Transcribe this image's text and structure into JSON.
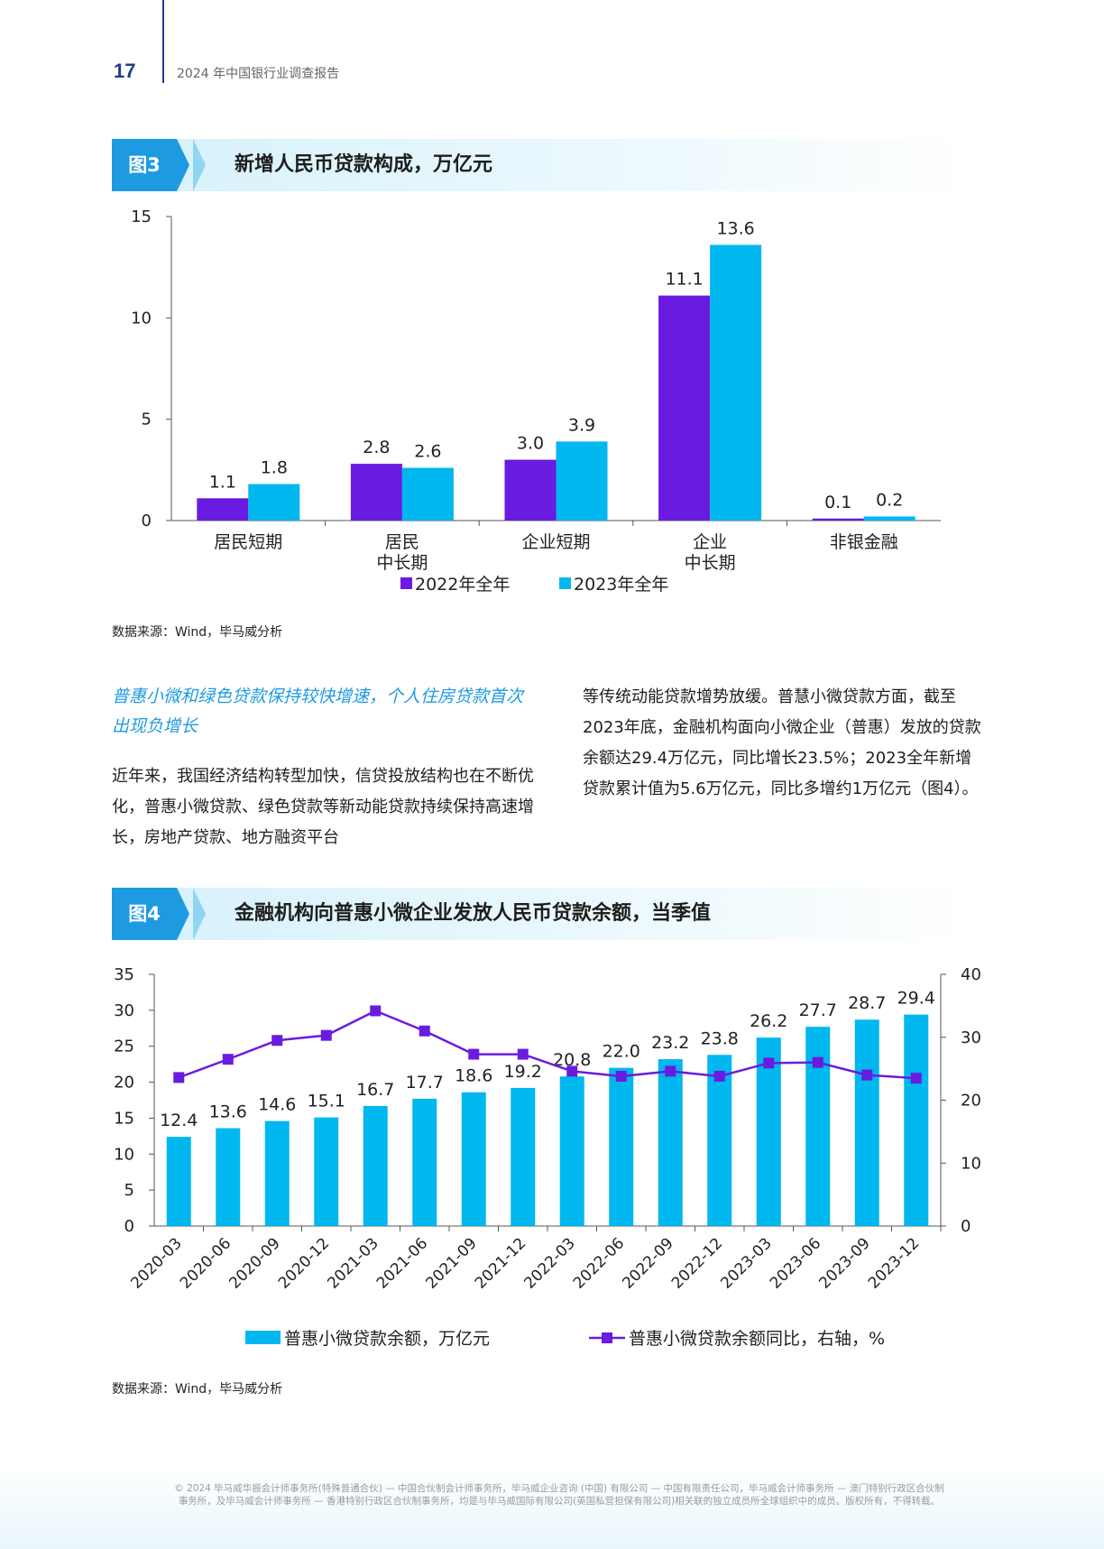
{
  "header": {
    "page_number": "17",
    "report_title": "2024 年中国银行业调查报告"
  },
  "figure3": {
    "badge": "图3",
    "title": "新增人民币贷款构成，万亿元",
    "source": "数据来源：Wind，毕马威分析"
  },
  "figure4": {
    "badge": "图4",
    "title": "金融机构向普惠小微企业发放人民币贷款余额，当季值",
    "source": "数据来源：Wind，毕马威分析"
  },
  "article": {
    "subheading": "普惠小微和绿色贷款保持较快增速，个人住房贷款首次出现负增长",
    "left_paragraph": "近年来，我国经济结构转型加快，信贷投放结构也在不断优化，普惠小微贷款、绿色贷款等新动能贷款持续保持高速增长，房地产贷款、地方融资平台",
    "right_paragraph": "等传统动能贷款增势放缓。普慧小微贷款方面，截至2023年底，金融机构面向小微企业（普惠）发放的贷款余额达29.4万亿元，同比增长23.5%；2023全年新增贷款累计值为5.6万亿元，同比多增约1万亿元（图4）。"
  },
  "footer": {
    "copyright": "© 2024 毕马威华振会计师事务所(特殊普通合伙) — 中国合伙制会计师事务所，毕马威企业咨询 (中国) 有限公司 — 中国有限责任公司，毕马威会计师事务所 — 澳门特别行政区合伙制事务所，及毕马威会计师事务所 — 香港特别行政区合伙制事务所，均是与毕马威国际有限公司(英国私营担保有限公司)相关联的独立成员所全球组织中的成员。版权所有，不得转载。"
  },
  "colors": {
    "purple": "#6a1be0",
    "cyan": "#00b7ef",
    "brand_blue": "#1f3c8c",
    "accent": "#1e9be0"
  },
  "chart_data": [
    {
      "type": "bar",
      "categories": [
        [
          "居民短期"
        ],
        [
          "居民",
          "中长期"
        ],
        [
          "企业短期"
        ],
        [
          "企业",
          "中长期"
        ],
        [
          "非银金融"
        ]
      ],
      "series": [
        {
          "name": "2022年全年",
          "values": [
            1.1,
            2.8,
            3.0,
            11.1,
            0.1
          ],
          "labels": [
            "1.1",
            "2.8",
            "3.0",
            "11.1",
            "0.1"
          ],
          "color": "#6a1be0"
        },
        {
          "name": "2023年全年",
          "values": [
            1.8,
            2.6,
            3.9,
            13.6,
            0.2
          ],
          "labels": [
            "1.8",
            "2.6",
            "3.9",
            "13.6",
            "0.2"
          ],
          "color": "#00b7ef"
        }
      ],
      "ylim": [
        0,
        15
      ],
      "yticks": [
        "0",
        "5",
        "10",
        "15"
      ],
      "legend_placement": "bottom",
      "grid": false
    },
    {
      "type": "bar+line",
      "categories": [
        "2020-03",
        "2020-06",
        "2020-09",
        "2020-12",
        "2021-03",
        "2021-06",
        "2021-09",
        "2021-12",
        "2022-03",
        "2022-06",
        "2022-09",
        "2022-12",
        "2023-03",
        "2023-06",
        "2023-09",
        "2023-12"
      ],
      "bar_series": {
        "name": "普惠小微贷款余额，万亿元",
        "values": [
          12.4,
          13.6,
          14.6,
          15.1,
          16.7,
          17.7,
          18.6,
          19.2,
          20.8,
          22.0,
          23.2,
          23.8,
          26.2,
          27.7,
          28.7,
          29.4
        ],
        "labels": [
          "12.4",
          "13.6",
          "14.6",
          "15.1",
          "16.7",
          "17.7",
          "18.6",
          "19.2",
          "20.8",
          "22.0",
          "23.2",
          "23.8",
          "26.2",
          "27.7",
          "28.7",
          "29.4"
        ],
        "color": "#00b7ef"
      },
      "line_series": {
        "name": "普惠小微贷款余额同比，右轴，%",
        "values": [
          23.6,
          26.5,
          29.5,
          30.3,
          34.2,
          31.0,
          27.3,
          27.3,
          24.6,
          23.8,
          24.6,
          23.8,
          25.9,
          26.0,
          24.0,
          23.5
        ],
        "color": "#6a1be0"
      },
      "ylim_left": [
        0,
        35
      ],
      "yticks_left": [
        "0",
        "5",
        "10",
        "15",
        "20",
        "25",
        "30",
        "35"
      ],
      "ylim_right": [
        0,
        40
      ],
      "yticks_right": [
        "0",
        "10",
        "20",
        "30",
        "40"
      ],
      "legend_placement": "bottom",
      "grid": false
    }
  ]
}
